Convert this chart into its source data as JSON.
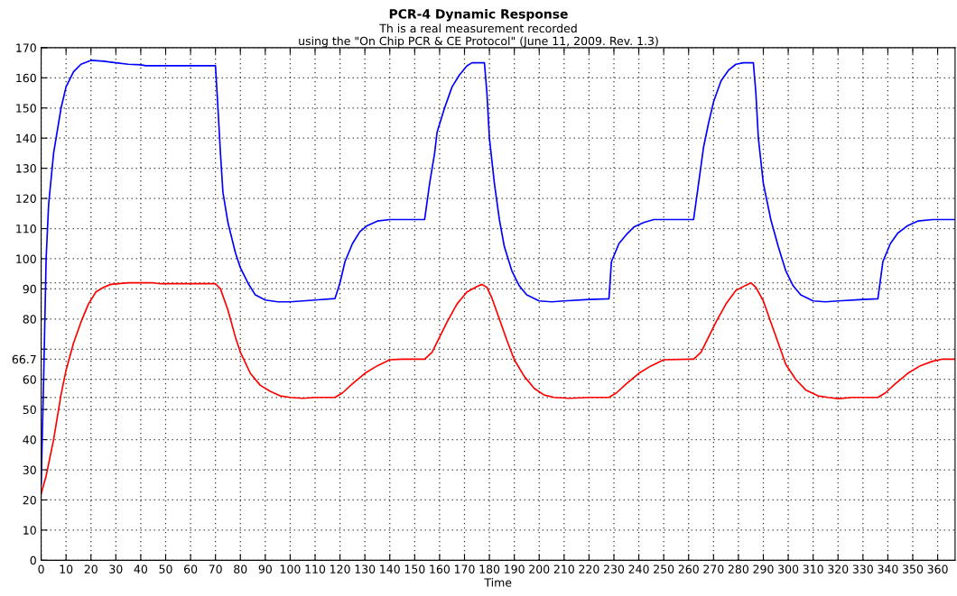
{
  "chart_data": {
    "type": "line",
    "title": "PCR-4 Dynamic Response",
    "subtitle": "Th is a real measurement recorded\nusing the \"On Chip PCR & CE Protocol\" (June 11, 2009. Rev. 1.3)",
    "xlabel": "Time",
    "xlim": [
      0,
      367
    ],
    "xticks": [
      0,
      10,
      20,
      30,
      40,
      50,
      60,
      70,
      80,
      90,
      100,
      110,
      120,
      130,
      140,
      150,
      160,
      170,
      180,
      190,
      200,
      210,
      220,
      230,
      240,
      250,
      260,
      270,
      280,
      290,
      300,
      310,
      320,
      330,
      340,
      350,
      360
    ],
    "ylim": [
      0,
      170
    ],
    "yticks": [
      0,
      10,
      20,
      30,
      40,
      50,
      {
        "value": 54,
        "label": null
      },
      60,
      {
        "value": 66.7,
        "label": "66.7"
      },
      {
        "value": 70,
        "label": null
      },
      80,
      90,
      {
        "value": 92,
        "label": null
      },
      100,
      110,
      120,
      130,
      140,
      150,
      160,
      170
    ],
    "grid": true,
    "line_style": "solid",
    "marker": "none",
    "series": [
      {
        "color": "#0000ff",
        "x": [
          0,
          1,
          2,
          3,
          5,
          8,
          10,
          13,
          16,
          20,
          25,
          30,
          35,
          40,
          42,
          70,
          71,
          72,
          73,
          75,
          78,
          80,
          83,
          86,
          90,
          95,
          100,
          105,
          110,
          118,
          120,
          122,
          125,
          128,
          131,
          135,
          140,
          154,
          156,
          158,
          159,
          162,
          165,
          168,
          171,
          173,
          178,
          179,
          180,
          182,
          184,
          186,
          189,
          192,
          195,
          200,
          205,
          210,
          220,
          228,
          229,
          232,
          235,
          238,
          242,
          246,
          262,
          264,
          266,
          268,
          270,
          273,
          276,
          279,
          282,
          286,
          287,
          288,
          290,
          293,
          296,
          299,
          302,
          305,
          310,
          315,
          320,
          330,
          336,
          338,
          341,
          344,
          348,
          352,
          358,
          367
        ],
        "values": [
          25,
          60,
          100,
          118,
          135,
          150,
          157,
          162,
          164.5,
          165.8,
          165.5,
          165,
          164.5,
          164.3,
          164,
          164,
          150,
          135,
          122,
          112,
          102,
          97,
          92,
          88,
          86.3,
          85.7,
          85.7,
          86,
          86.3,
          86.8,
          92,
          99,
          105,
          109,
          111,
          112.5,
          113,
          113,
          125,
          135,
          142,
          150,
          157,
          161,
          164,
          165,
          165,
          155,
          140,
          125,
          113,
          104,
          96,
          91,
          88,
          86,
          85.7,
          86,
          86.5,
          86.7,
          99,
          105,
          108,
          110.5,
          112,
          113,
          113,
          125,
          137,
          145,
          152,
          159,
          162.5,
          164.5,
          165,
          165,
          155,
          140,
          125,
          113,
          104,
          96,
          91,
          88,
          86,
          85.7,
          86,
          86.5,
          86.7,
          99,
          105,
          108.5,
          111,
          112.5,
          113,
          113
        ]
      },
      {
        "color": "#ff0000",
        "x": [
          0,
          2,
          5,
          8,
          10,
          13,
          16,
          19,
          22,
          25,
          28,
          35,
          45,
          48,
          70,
          72,
          75,
          78,
          80,
          84,
          88,
          92,
          96,
          100,
          105,
          110,
          118,
          121,
          125,
          130,
          135,
          140,
          145,
          154,
          157,
          160,
          163,
          167,
          171,
          175,
          177,
          179,
          181,
          184,
          187,
          190,
          194,
          198,
          202,
          206,
          212,
          220,
          228,
          231,
          235,
          240,
          245,
          250,
          262,
          265,
          268,
          271,
          275,
          279,
          283,
          285,
          287,
          290,
          293,
          296,
          299,
          303,
          307,
          312,
          316,
          320,
          326,
          336,
          339,
          343,
          348,
          353,
          358,
          362,
          367
        ],
        "values": [
          22,
          28,
          40,
          55,
          63,
          72,
          79,
          85,
          89,
          90.5,
          91.5,
          92,
          92,
          91.7,
          91.7,
          90,
          83,
          74,
          69,
          62,
          58,
          56,
          54.5,
          54,
          53.7,
          54,
          54,
          55.5,
          58.5,
          62,
          64.5,
          66.5,
          66.7,
          66.7,
          69,
          74,
          79,
          85,
          89,
          90.8,
          91.5,
          90.5,
          87,
          80,
          73,
          66.5,
          61,
          57,
          54.8,
          54,
          53.7,
          54,
          54,
          55.5,
          58.5,
          62,
          64.5,
          66.5,
          66.7,
          69,
          74,
          79,
          85,
          89.5,
          91.2,
          92,
          90.5,
          86,
          79,
          72,
          65,
          60,
          56.5,
          54.5,
          54,
          53.6,
          54,
          54,
          55.5,
          58.5,
          62,
          64.5,
          66,
          66.7,
          66.7
        ]
      }
    ]
  }
}
